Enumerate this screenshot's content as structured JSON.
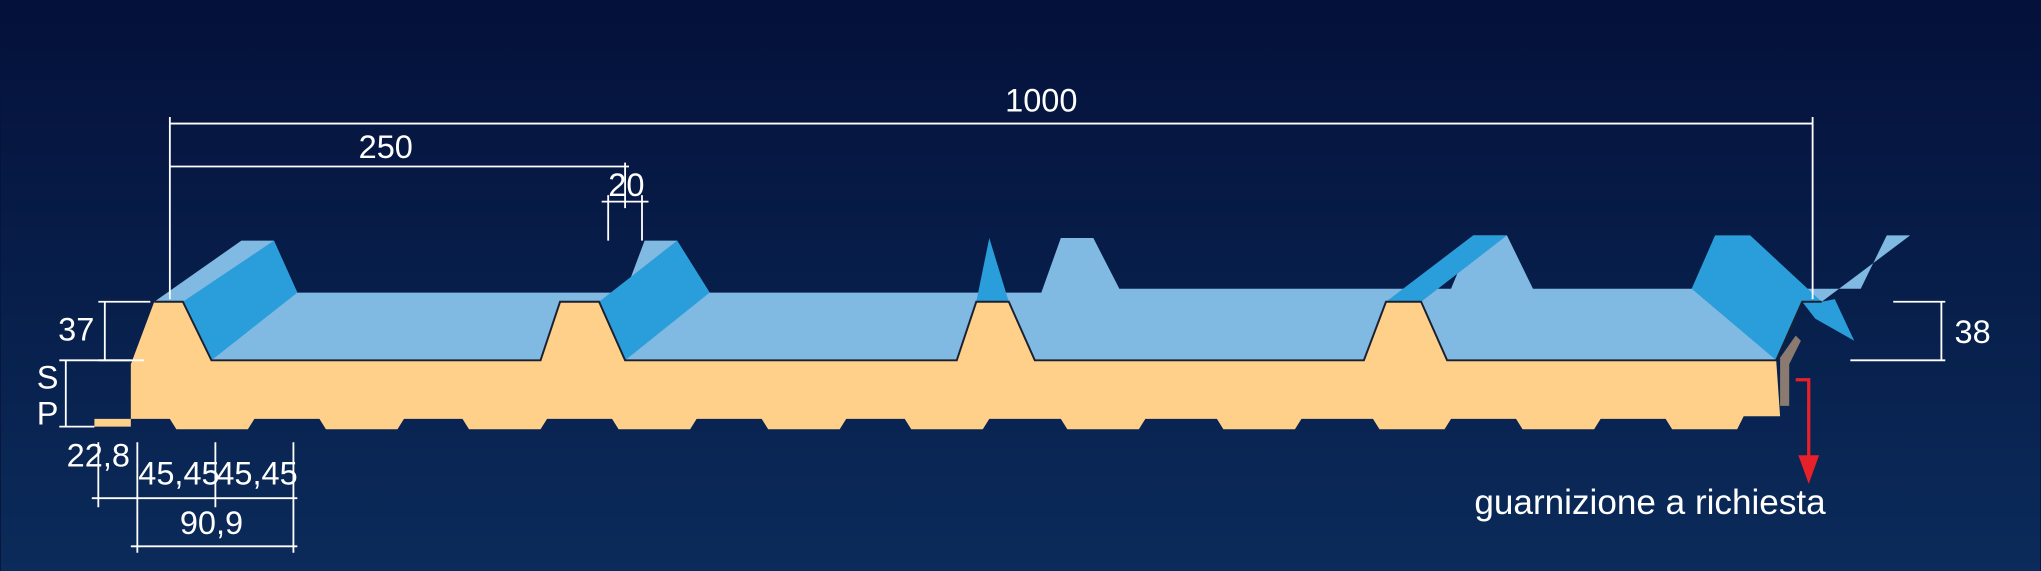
{
  "dimensions": {
    "total_width": "1000",
    "rib_pitch": "250",
    "rib_top": "20",
    "rib_height": "37",
    "edge_height": "38",
    "thickness": "SP",
    "edge_offset": "22,8",
    "groove_left": "45,45",
    "groove_right": "45,45",
    "groove_total": "90,9"
  },
  "note": "guarnizione a richiesta"
}
